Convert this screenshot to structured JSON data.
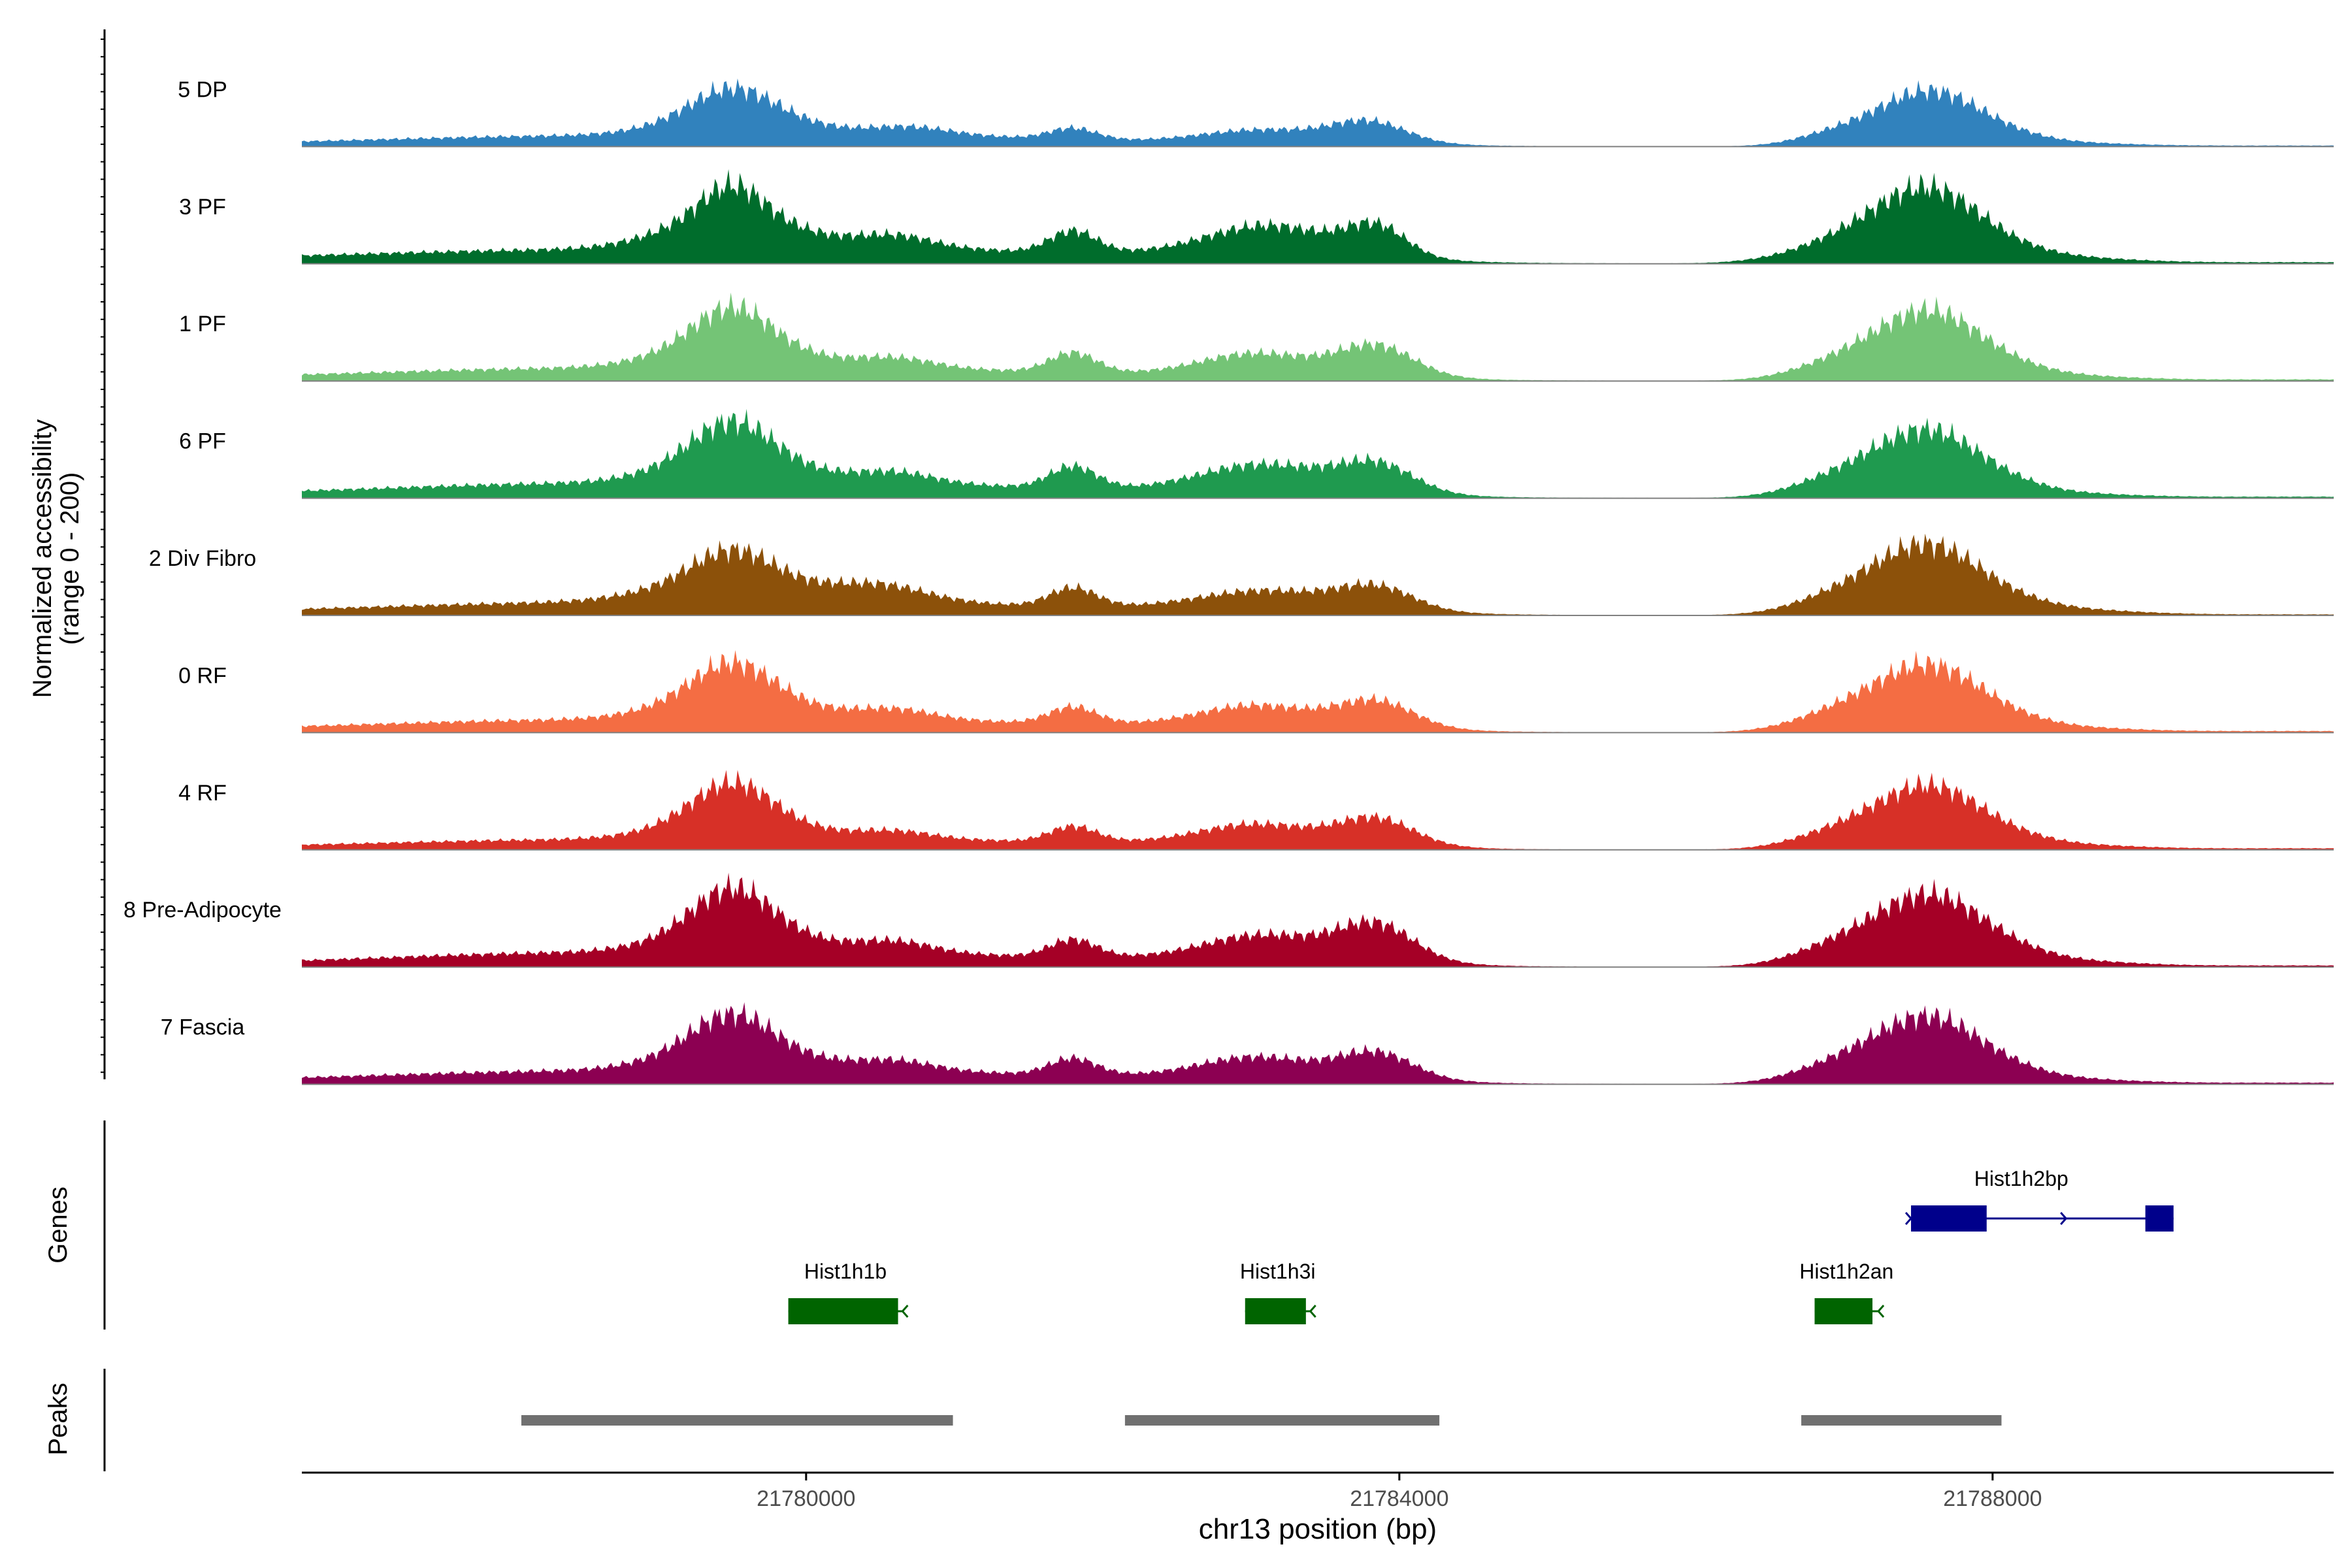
{
  "chart_data": {
    "type": "coverage",
    "xlabel": "chr13 position (bp)",
    "ylabel_line1": "Normalized accessibility",
    "ylabel_line2": "(range 0 - 200)",
    "y_range": [
      0,
      200
    ],
    "xlim": [
      21776600,
      21790300
    ],
    "x_ticks": [
      21780000,
      21784000,
      21788000
    ],
    "x_tick_labels": [
      "21780000",
      "21784000",
      "21788000"
    ],
    "tracks": [
      {
        "name": "5 DP",
        "color": "#3182bd",
        "peaks": [
          [
            21777900,
            3,
            4000
          ],
          [
            21778300,
            6,
            1000
          ],
          [
            21779000,
            12,
            2000
          ],
          [
            21779400,
            28,
            400
          ],
          [
            21779500,
            45,
            260
          ],
          [
            21779700,
            18,
            400
          ],
          [
            21780100,
            10,
            600
          ],
          [
            21780700,
            14,
            250
          ],
          [
            21781100,
            9,
            500
          ],
          [
            21781800,
            22,
            160
          ],
          [
            21782400,
            6,
            600
          ],
          [
            21783000,
            15,
            350
          ],
          [
            21783300,
            8,
            400
          ],
          [
            21783800,
            38,
            250
          ],
          [
            21783500,
            6,
            600
          ],
          [
            21786900,
            12,
            250
          ],
          [
            21787300,
            35,
            350
          ],
          [
            21787600,
            72,
            300
          ],
          [
            21788000,
            20,
            300
          ],
          [
            21788400,
            7,
            500
          ],
          [
            21790100,
            2,
            800
          ]
        ]
      },
      {
        "name": "3 PF",
        "color": "#006d2c",
        "peaks": [
          [
            21777900,
            5,
            4000
          ],
          [
            21778500,
            5,
            1500
          ],
          [
            21779000,
            18,
            2000
          ],
          [
            21779400,
            45,
            400
          ],
          [
            21779500,
            55,
            200
          ],
          [
            21779700,
            22,
            400
          ],
          [
            21780100,
            10,
            600
          ],
          [
            21780600,
            22,
            250
          ],
          [
            21781100,
            9,
            500
          ],
          [
            21781800,
            42,
            160
          ],
          [
            21782400,
            12,
            600
          ],
          [
            21783100,
            48,
            400
          ],
          [
            21783300,
            8,
            400
          ],
          [
            21783850,
            55,
            200
          ],
          [
            21783500,
            10,
            600
          ],
          [
            21786900,
            22,
            350
          ],
          [
            21787300,
            55,
            350
          ],
          [
            21787600,
            90,
            300
          ],
          [
            21788000,
            26,
            300
          ],
          [
            21788400,
            12,
            500
          ],
          [
            21790100,
            3,
            800
          ]
        ]
      },
      {
        "name": "1 PF",
        "color": "#74c476",
        "peaks": [
          [
            21777900,
            4,
            4000
          ],
          [
            21778300,
            6,
            1000
          ],
          [
            21779000,
            15,
            2000
          ],
          [
            21779400,
            40,
            400
          ],
          [
            21779500,
            58,
            240
          ],
          [
            21779700,
            20,
            400
          ],
          [
            21780100,
            9,
            600
          ],
          [
            21780600,
            18,
            250
          ],
          [
            21781100,
            8,
            500
          ],
          [
            21781800,
            38,
            160
          ],
          [
            21782400,
            8,
            600
          ],
          [
            21783000,
            32,
            350
          ],
          [
            21783300,
            8,
            400
          ],
          [
            21783850,
            55,
            250
          ],
          [
            21783500,
            9,
            600
          ],
          [
            21786900,
            18,
            300
          ],
          [
            21787300,
            50,
            350
          ],
          [
            21787600,
            85,
            300
          ],
          [
            21788000,
            26,
            300
          ],
          [
            21788400,
            10,
            500
          ],
          [
            21790100,
            3,
            800
          ]
        ]
      },
      {
        "name": "6 PF",
        "color": "#1f9a4f",
        "peaks": [
          [
            21777900,
            4,
            4000
          ],
          [
            21778300,
            7,
            1000
          ],
          [
            21779000,
            18,
            2000
          ],
          [
            21779400,
            40,
            400
          ],
          [
            21779500,
            58,
            250
          ],
          [
            21779700,
            22,
            400
          ],
          [
            21780100,
            10,
            600
          ],
          [
            21780600,
            20,
            250
          ],
          [
            21781100,
            9,
            500
          ],
          [
            21781800,
            42,
            160
          ],
          [
            21782400,
            10,
            600
          ],
          [
            21783050,
            42,
            400
          ],
          [
            21783300,
            8,
            400
          ],
          [
            21783850,
            52,
            250
          ],
          [
            21783500,
            9,
            600
          ],
          [
            21786900,
            20,
            300
          ],
          [
            21787300,
            52,
            350
          ],
          [
            21787600,
            80,
            300
          ],
          [
            21788000,
            25,
            300
          ],
          [
            21788400,
            9,
            500
          ],
          [
            21790100,
            3,
            800
          ]
        ]
      },
      {
        "name": "2 Div Fibro",
        "color": "#8c510a",
        "peaks": [
          [
            21777900,
            4,
            4000
          ],
          [
            21778300,
            6,
            1000
          ],
          [
            21779000,
            15,
            2000
          ],
          [
            21779400,
            38,
            450
          ],
          [
            21779500,
            45,
            250
          ],
          [
            21779700,
            18,
            400
          ],
          [
            21780100,
            10,
            600
          ],
          [
            21780500,
            28,
            300
          ],
          [
            21781000,
            9,
            500
          ],
          [
            21781800,
            36,
            160
          ],
          [
            21782400,
            10,
            600
          ],
          [
            21783050,
            25,
            400
          ],
          [
            21783300,
            8,
            400
          ],
          [
            21783850,
            42,
            250
          ],
          [
            21783500,
            9,
            600
          ],
          [
            21786900,
            18,
            300
          ],
          [
            21787300,
            55,
            350
          ],
          [
            21787600,
            82,
            300
          ],
          [
            21788000,
            26,
            300
          ],
          [
            21788400,
            12,
            500
          ],
          [
            21790100,
            2,
            800
          ]
        ]
      },
      {
        "name": "0 RF",
        "color": "#f46d43",
        "peaks": [
          [
            21777900,
            4,
            4000
          ],
          [
            21778300,
            6,
            1000
          ],
          [
            21779000,
            15,
            2000
          ],
          [
            21779400,
            38,
            400
          ],
          [
            21779500,
            52,
            250
          ],
          [
            21779700,
            20,
            400
          ],
          [
            21780100,
            10,
            600
          ],
          [
            21780600,
            18,
            250
          ],
          [
            21781100,
            8,
            500
          ],
          [
            21781800,
            32,
            160
          ],
          [
            21782400,
            10,
            600
          ],
          [
            21783000,
            30,
            350
          ],
          [
            21783300,
            8,
            400
          ],
          [
            21783850,
            48,
            250
          ],
          [
            21783500,
            9,
            600
          ],
          [
            21786900,
            20,
            300
          ],
          [
            21787300,
            50,
            350
          ],
          [
            21787600,
            80,
            300
          ],
          [
            21788000,
            26,
            300
          ],
          [
            21788400,
            10,
            500
          ],
          [
            21790100,
            3,
            800
          ]
        ]
      },
      {
        "name": "4 RF",
        "color": "#d73027",
        "peaks": [
          [
            21777900,
            3,
            4000
          ],
          [
            21778300,
            5,
            1000
          ],
          [
            21779000,
            12,
            2000
          ],
          [
            21779400,
            32,
            400
          ],
          [
            21779500,
            60,
            250
          ],
          [
            21779700,
            18,
            400
          ],
          [
            21780100,
            8,
            600
          ],
          [
            21780600,
            14,
            250
          ],
          [
            21781100,
            7,
            500
          ],
          [
            21781800,
            30,
            160
          ],
          [
            21782400,
            10,
            600
          ],
          [
            21783000,
            28,
            350
          ],
          [
            21783300,
            8,
            400
          ],
          [
            21783850,
            48,
            250
          ],
          [
            21783500,
            9,
            600
          ],
          [
            21786900,
            18,
            300
          ],
          [
            21787300,
            45,
            350
          ],
          [
            21787600,
            78,
            300
          ],
          [
            21788000,
            24,
            300
          ],
          [
            21788400,
            10,
            500
          ],
          [
            21790100,
            3,
            800
          ]
        ]
      },
      {
        "name": "8 Pre-Adipocyte",
        "color": "#a50026",
        "peaks": [
          [
            21777900,
            3,
            4000
          ],
          [
            21778300,
            9,
            1000
          ],
          [
            21779000,
            16,
            2000
          ],
          [
            21779400,
            35,
            400
          ],
          [
            21779500,
            68,
            250
          ],
          [
            21779700,
            22,
            400
          ],
          [
            21780100,
            12,
            600
          ],
          [
            21780600,
            20,
            250
          ],
          [
            21781100,
            9,
            500
          ],
          [
            21781800,
            34,
            160
          ],
          [
            21782400,
            12,
            600
          ],
          [
            21783000,
            28,
            350
          ],
          [
            21783300,
            18,
            400
          ],
          [
            21783850,
            65,
            250
          ],
          [
            21783500,
            12,
            600
          ],
          [
            21786900,
            22,
            300
          ],
          [
            21787300,
            52,
            350
          ],
          [
            21787600,
            85,
            300
          ],
          [
            21788000,
            32,
            300
          ],
          [
            21788400,
            12,
            500
          ],
          [
            21790100,
            3,
            800
          ]
        ]
      },
      {
        "name": "7 Fascia",
        "color": "#8c0052",
        "peaks": [
          [
            21777900,
            4,
            4000
          ],
          [
            21778300,
            6,
            1000
          ],
          [
            21779000,
            16,
            2000
          ],
          [
            21779400,
            38,
            400
          ],
          [
            21779500,
            52,
            250
          ],
          [
            21779700,
            20,
            400
          ],
          [
            21780100,
            10,
            600
          ],
          [
            21780600,
            18,
            250
          ],
          [
            21781100,
            8,
            500
          ],
          [
            21781800,
            32,
            160
          ],
          [
            21782400,
            10,
            600
          ],
          [
            21783000,
            30,
            350
          ],
          [
            21783300,
            8,
            400
          ],
          [
            21783850,
            48,
            250
          ],
          [
            21783500,
            9,
            600
          ],
          [
            21786900,
            20,
            300
          ],
          [
            21787300,
            50,
            350
          ],
          [
            21787600,
            80,
            300
          ],
          [
            21788000,
            26,
            300
          ],
          [
            21788400,
            10,
            500
          ],
          [
            21790100,
            3,
            800
          ]
        ]
      }
    ],
    "genes_label": "Genes",
    "genes": [
      {
        "name": "Hist1h2bp",
        "strand": "+",
        "start": 21787450,
        "end": 21789220,
        "exons": [
          [
            21787450,
            21787960
          ],
          [
            21789030,
            21789220
          ]
        ],
        "color": "#00008b"
      },
      {
        "name": "Hist1h1b",
        "strand": "-",
        "start": 21779880,
        "end": 21780650,
        "exons": [
          [
            21779880,
            21780620
          ]
        ],
        "color": "#006400"
      },
      {
        "name": "Hist1h3i",
        "strand": "-",
        "start": 21782960,
        "end": 21783400,
        "exons": [
          [
            21782960,
            21783370
          ]
        ],
        "color": "#006400"
      },
      {
        "name": "Hist1h2an",
        "strand": "-",
        "start": 21786800,
        "end": 21787230,
        "exons": [
          [
            21786800,
            21787190
          ]
        ],
        "color": "#006400"
      }
    ],
    "peaks_label": "Peaks",
    "peak_regions": [
      [
        21778080,
        21780990
      ],
      [
        21782150,
        21784270
      ],
      [
        21786710,
        21788060
      ]
    ]
  }
}
